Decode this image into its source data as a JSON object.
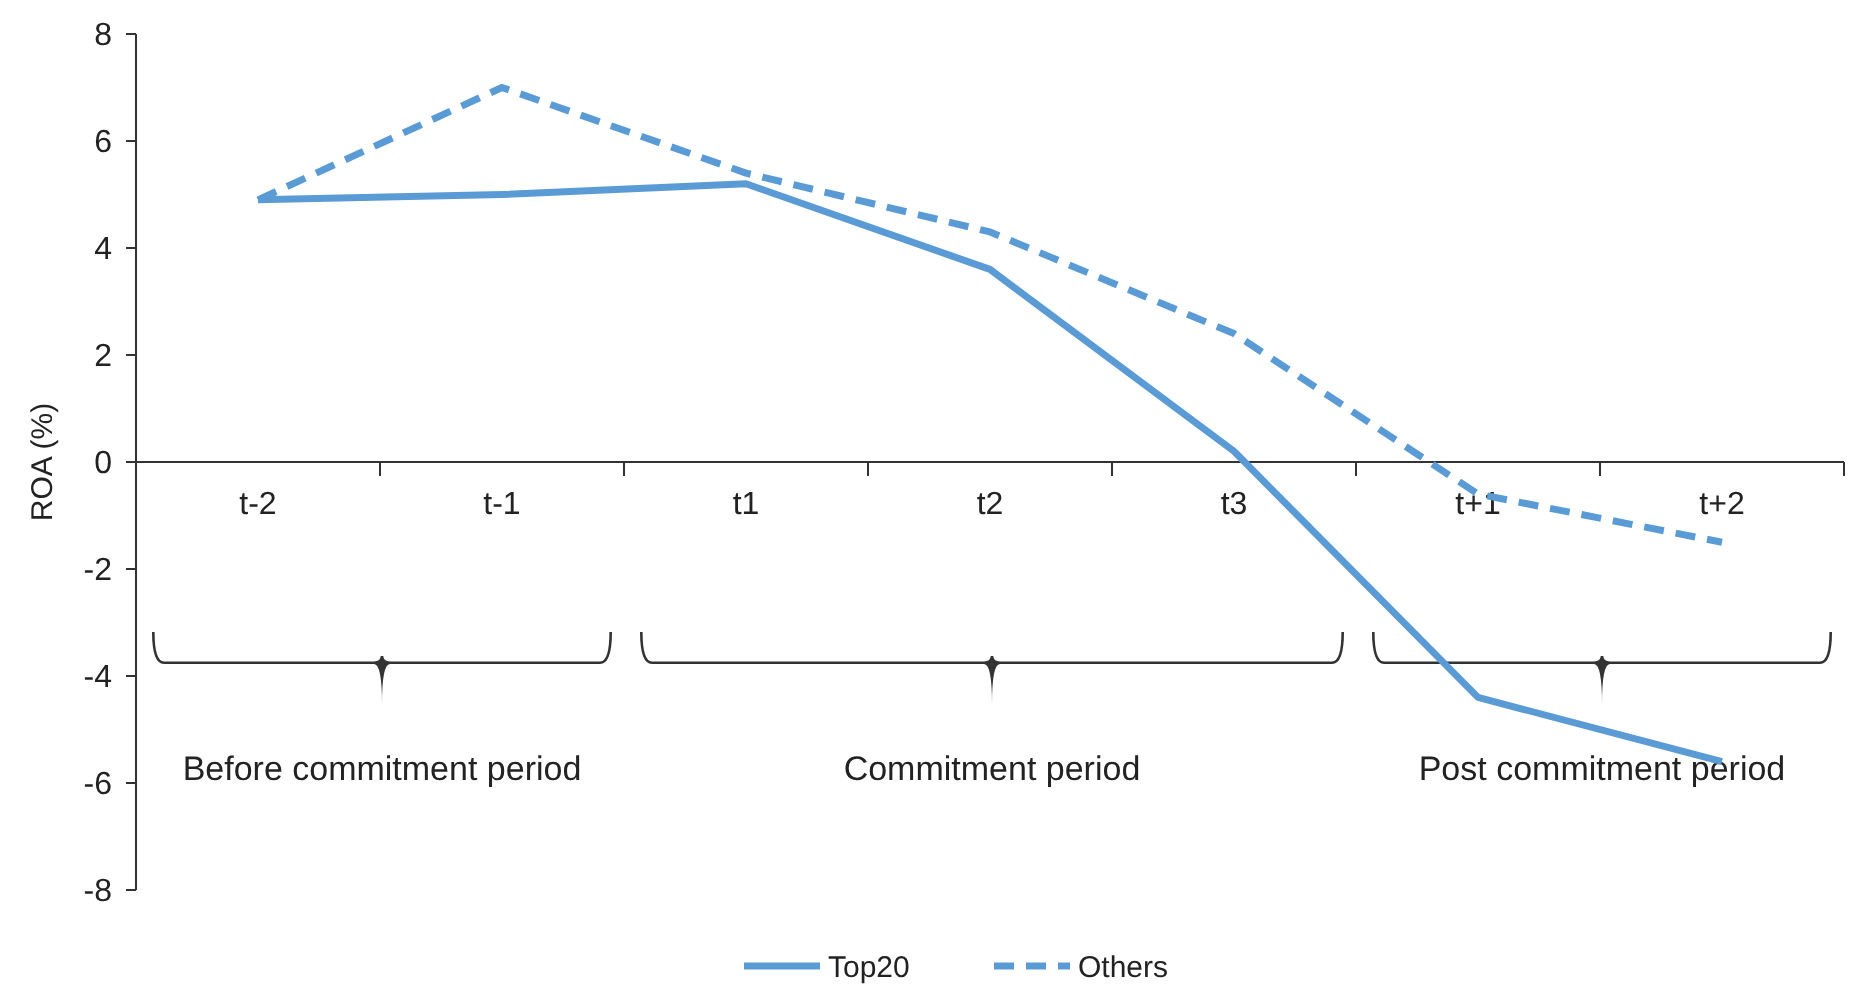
{
  "chart_data": {
    "type": "line",
    "ylabel": "ROA (%)",
    "categories": [
      "t-2",
      "t-1",
      "t1",
      "t2",
      "t3",
      "t+1",
      "t+2"
    ],
    "series": [
      {
        "name": "Top20",
        "color": "#5b9bd5",
        "line_style": "solid",
        "values": [
          4.9,
          5.0,
          5.2,
          3.6,
          0.2,
          -4.4,
          -5.6
        ]
      },
      {
        "name": "Others",
        "color": "#5b9bd5",
        "line_style": "dashed",
        "values": [
          4.9,
          7.0,
          5.4,
          4.3,
          2.4,
          -0.6,
          -1.5
        ]
      }
    ],
    "ylim": [
      -8,
      8
    ],
    "yticks": [
      -8,
      -6,
      -4,
      -2,
      0,
      2,
      4,
      6,
      8
    ],
    "grid": false,
    "legend": "bottom",
    "marker": "none",
    "annotations": [
      "Before commitment period",
      "Commitment period",
      "Post commitment period"
    ]
  }
}
